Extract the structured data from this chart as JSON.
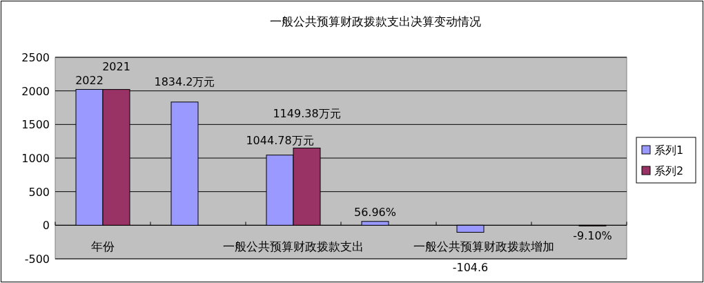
{
  "chart_data": {
    "type": "bar",
    "title": "一般公共预算财政拨款支出决算变动情况",
    "categories": [
      "年份",
      null,
      "一般公共预算财政拨款支出",
      null,
      "一般公共预算财政拨款增加",
      null
    ],
    "series": [
      {
        "name": "系列1",
        "color": "#9999ff",
        "values": [
          2022,
          1834.2,
          1044.78,
          56.96,
          -104.6,
          null
        ],
        "value_labels": [
          "2022",
          "1834.2万元",
          "1044.78万元",
          "56.96%",
          "-104.6",
          null
        ]
      },
      {
        "name": "系列2",
        "color": "#993366",
        "values": [
          2021,
          null,
          1149.38,
          null,
          null,
          -9.1
        ],
        "value_labels": [
          "2021",
          null,
          "1149.38万元",
          null,
          null,
          "-9.10%"
        ]
      }
    ],
    "ylim": [
      -500,
      2500
    ],
    "yticks": [
      -500,
      0,
      500,
      1000,
      1500,
      2000,
      2500
    ],
    "grid": "y",
    "legend": "right"
  }
}
